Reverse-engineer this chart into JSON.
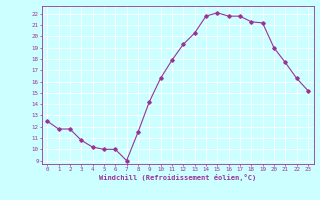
{
  "x": [
    0,
    1,
    2,
    3,
    4,
    5,
    6,
    7,
    8,
    9,
    10,
    11,
    12,
    13,
    14,
    15,
    16,
    17,
    18,
    19,
    20,
    21,
    22,
    23
  ],
  "y": [
    12.5,
    11.8,
    11.8,
    10.8,
    10.2,
    10.0,
    10.0,
    9.0,
    11.5,
    14.2,
    16.3,
    17.9,
    19.3,
    20.3,
    21.8,
    22.1,
    21.8,
    21.8,
    21.3,
    21.2,
    19.0,
    17.7,
    16.3,
    15.2
  ],
  "line_color": "#993399",
  "marker": "D",
  "marker_size": 1.8,
  "bg_color": "#ccffff",
  "grid_color": "#ffffff",
  "xlabel": "Windchill (Refroidissement éolien,°C)",
  "xlabel_color": "#993399",
  "tick_color": "#993399",
  "ylim": [
    8.7,
    22.7
  ],
  "xlim": [
    -0.5,
    23.5
  ],
  "yticks": [
    9,
    10,
    11,
    12,
    13,
    14,
    15,
    16,
    17,
    18,
    19,
    20,
    21,
    22
  ],
  "xticks": [
    0,
    1,
    2,
    3,
    4,
    5,
    6,
    7,
    8,
    9,
    10,
    11,
    12,
    13,
    14,
    15,
    16,
    17,
    18,
    19,
    20,
    21,
    22,
    23
  ]
}
